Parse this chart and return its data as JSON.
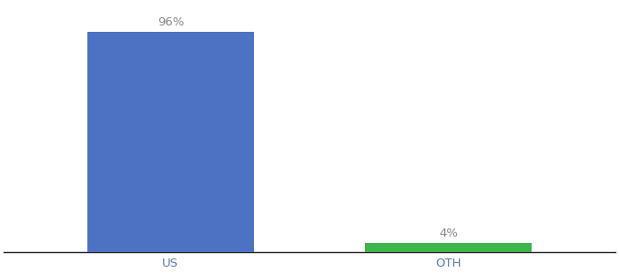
{
  "categories": [
    "US",
    "OTH"
  ],
  "values": [
    96,
    4
  ],
  "bar_colors": [
    "#4d72c4",
    "#3cb54a"
  ],
  "bar_labels": [
    "96%",
    "4%"
  ],
  "ylim": [
    0,
    108
  ],
  "background_color": "#ffffff",
  "label_fontsize": 9.5,
  "tick_fontsize": 9.5,
  "tick_color": "#5a7ab5",
  "label_color": "#888888",
  "bar_width": 0.6,
  "fig_width": 6.8,
  "fig_height": 3.0,
  "dpi": 100,
  "xlim": [
    -0.6,
    1.6
  ]
}
